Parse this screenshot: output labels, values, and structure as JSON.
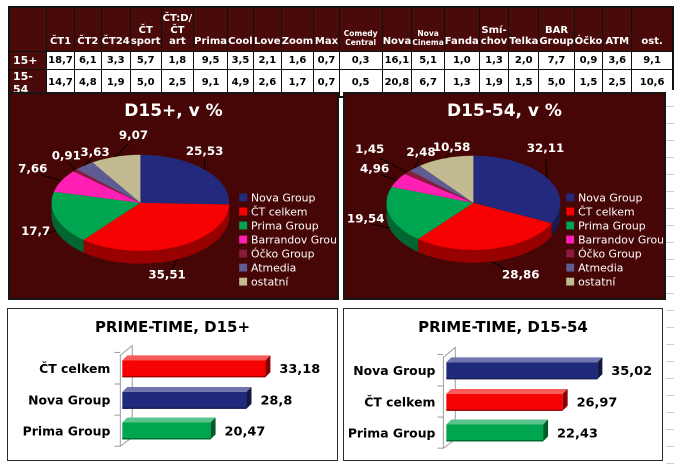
{
  "theme": {
    "panel_background": "#470606",
    "table_header_background": "#4A0A0A",
    "gridline_color": "#cccccc",
    "pie_label_color": "#ffffff",
    "bar_label_color": "#000000"
  },
  "chart_data": [
    {
      "type": "table",
      "corner_label": "",
      "columns": [
        "ČT1",
        "ČT2",
        "ČT24",
        "ČT\nsport",
        "ČT:D/\nČT art",
        "Prima",
        "Cool",
        "Love",
        "Zoom",
        "Max",
        "Comedy\nCentral",
        "Nova",
        "Nova\nCinema",
        "Fanda",
        "Smí-\nchov",
        "Telka",
        "BAR\nGroup",
        "Óčko",
        "ATM",
        "ost."
      ],
      "rows": [
        {
          "label": "15+",
          "values": [
            "18,7",
            "6,1",
            "3,3",
            "5,7",
            "1,8",
            "9,5",
            "3,5",
            "2,1",
            "1,6",
            "0,7",
            "0,3",
            "16,1",
            "5,1",
            "1,0",
            "1,3",
            "2,0",
            "7,7",
            "0,9",
            "3,6",
            "9,1"
          ]
        },
        {
          "label": "15-54",
          "values": [
            "14,7",
            "4,8",
            "1,9",
            "5,0",
            "2,5",
            "9,1",
            "4,9",
            "2,6",
            "1,7",
            "0,7",
            "0,5",
            "20,8",
            "6,7",
            "1,3",
            "1,9",
            "1,5",
            "5,0",
            "1,5",
            "2,5",
            "10,6"
          ]
        }
      ]
    },
    {
      "type": "pie",
      "title": "D15+, v %",
      "labels": [
        "Nova Group",
        "ČT celkem",
        "Prima Group",
        "Barrandov Group",
        "Óčko Group",
        "Atmedia",
        "ostatní"
      ],
      "values": [
        25.53,
        35.51,
        17.7,
        7.66,
        0.91,
        3.63,
        9.07
      ],
      "display_values": [
        "25,53",
        "35,51",
        "17,7",
        "7,66",
        "0,91",
        "3,63",
        "9,07"
      ],
      "colors": [
        "#232A7D",
        "#F60202",
        "#00A550",
        "#FF1FB4",
        "#8A1B3C",
        "#5E5C92",
        "#C2BB91"
      ],
      "legend_position": "right",
      "background": "#470606"
    },
    {
      "type": "pie",
      "title": "D15-54, v %",
      "labels": [
        "Nova Group",
        "ČT celkem",
        "Prima Group",
        "Barrandov Group",
        "Óčko Group",
        "Atmedia",
        "ostatní"
      ],
      "values": [
        32.11,
        28.86,
        19.54,
        4.96,
        1.45,
        2.48,
        10.58
      ],
      "display_values": [
        "32,11",
        "28,86",
        "19,54",
        "4,96",
        "1,45",
        "2,48",
        "10,58"
      ],
      "colors": [
        "#232A7D",
        "#F60202",
        "#00A550",
        "#FF1FB4",
        "#8A1B3C",
        "#5E5C92",
        "#C2BB91"
      ],
      "legend_position": "right",
      "background": "#470606"
    },
    {
      "type": "bar",
      "orientation": "horizontal",
      "title": "PRIME-TIME, D15+",
      "categories": [
        "ČT celkem",
        "Nova Group",
        "Prima Group"
      ],
      "values": [
        33.18,
        28.8,
        20.47
      ],
      "display_values": [
        "33,18",
        "28,8",
        "20,47"
      ],
      "colors": [
        "#F60202",
        "#202A7C",
        "#00A64F"
      ],
      "xlim": [
        0,
        45
      ]
    },
    {
      "type": "bar",
      "orientation": "horizontal",
      "title": "PRIME-TIME, D15-54",
      "categories": [
        "Nova Group",
        "ČT celkem",
        "Prima Group"
      ],
      "values": [
        35.02,
        26.97,
        22.43
      ],
      "display_values": [
        "35,02",
        "26,97",
        "22,43"
      ],
      "colors": [
        "#202A7C",
        "#F60202",
        "#00A64F"
      ],
      "xlim": [
        0,
        45
      ]
    }
  ]
}
